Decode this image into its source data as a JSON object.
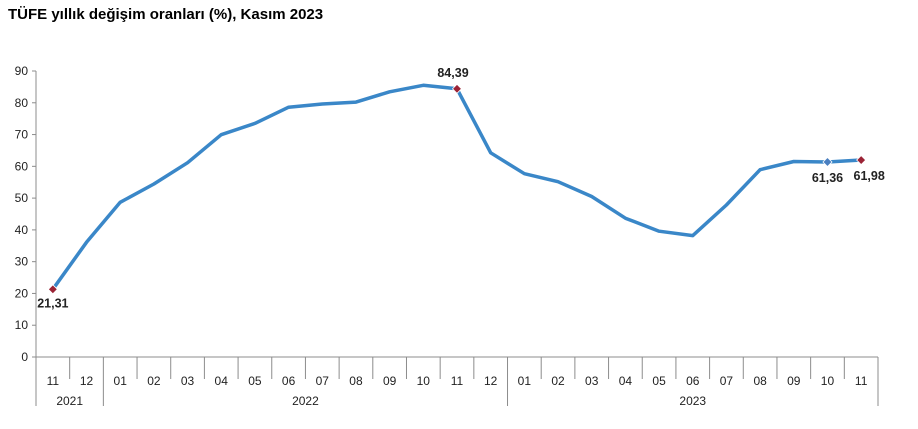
{
  "chart_data": {
    "type": "line",
    "title": "TÜFE yıllık değişim oranları (%), Kasım 2023",
    "xlabel": "",
    "ylabel": "",
    "ylim": [
      0,
      90
    ],
    "yticks": [
      "0",
      "10",
      "20",
      "30",
      "40",
      "50",
      "60",
      "70",
      "80",
      "90"
    ],
    "categories": [
      "11",
      "12",
      "01",
      "02",
      "03",
      "04",
      "05",
      "06",
      "07",
      "08",
      "09",
      "10",
      "11",
      "12",
      "01",
      "02",
      "03",
      "04",
      "05",
      "06",
      "07",
      "08",
      "09",
      "10",
      "11"
    ],
    "years": [
      {
        "label": "2021",
        "from": 0,
        "to": 1
      },
      {
        "label": "2022",
        "from": 2,
        "to": 13
      },
      {
        "label": "2023",
        "from": 14,
        "to": 24
      }
    ],
    "series": [
      {
        "values": [
          21.31,
          36.08,
          48.69,
          54.44,
          61.14,
          69.97,
          73.5,
          78.62,
          79.6,
          80.21,
          83.45,
          85.51,
          84.39,
          64.27,
          57.68,
          55.18,
          50.51,
          43.68,
          39.59,
          38.21,
          47.83,
          58.94,
          61.53,
          61.36,
          61.98
        ],
        "color": "#3a87c8"
      }
    ],
    "markers": [
      {
        "index": 0,
        "label": "21,31",
        "color": "#9b2335"
      },
      {
        "index": 12,
        "label": "84,39",
        "color": "#9b2335"
      },
      {
        "index": 23,
        "label": "61,36",
        "color": "#4a7fc0"
      },
      {
        "index": 24,
        "label": "61,98",
        "color": "#9b2335"
      }
    ],
    "grid": false,
    "legend": "none"
  }
}
